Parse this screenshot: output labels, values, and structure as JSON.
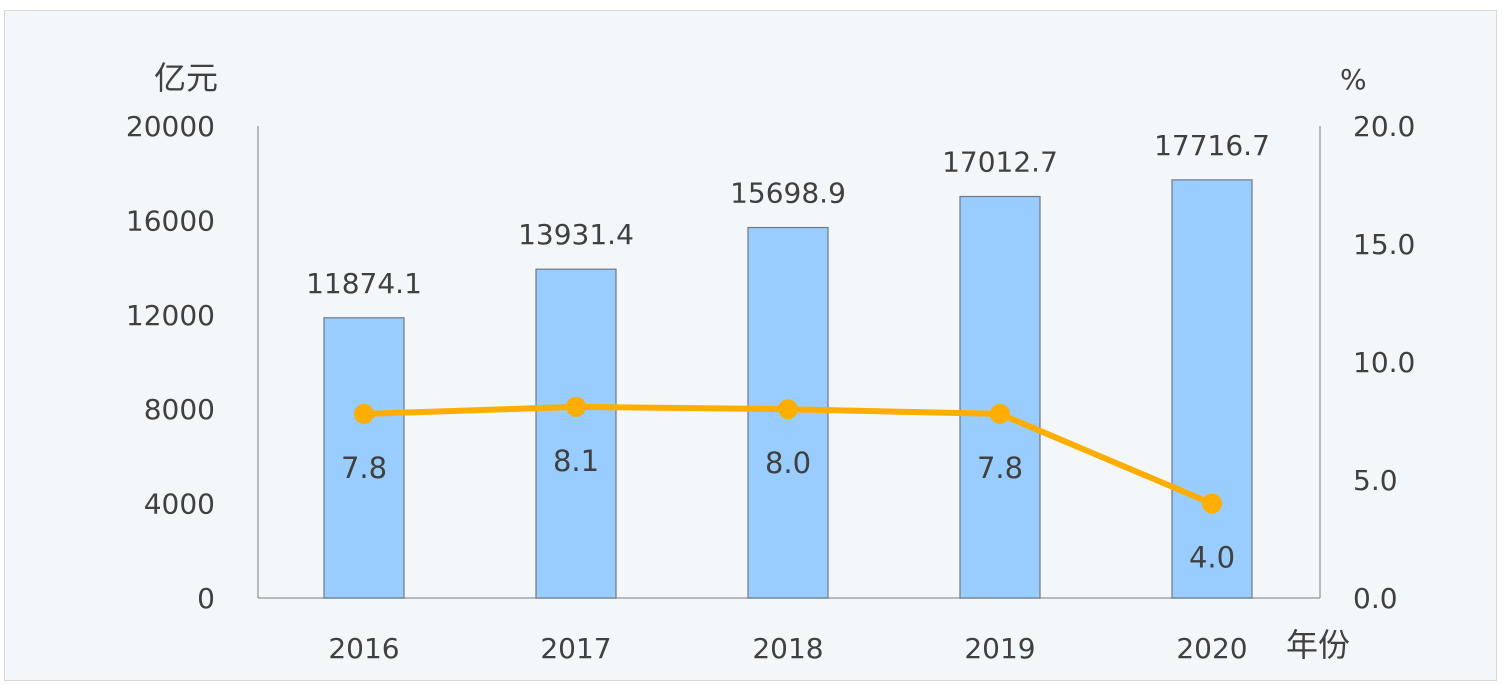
{
  "chart_data": {
    "type": "bar+line",
    "y_left_unit": "亿元",
    "y_right_unit": "%",
    "x_unit": "年份",
    "categories": [
      "2016",
      "2017",
      "2018",
      "2019",
      "2020"
    ],
    "bar_series": {
      "values": [
        11874.1,
        13931.4,
        15698.9,
        17012.7,
        17716.7
      ],
      "labels": [
        "11874.1",
        "13931.4",
        "15698.9",
        "17012.7",
        "17716.7"
      ],
      "color": "#99ccff",
      "edge_color": "#6f7a84"
    },
    "line_series": {
      "values": [
        7.8,
        8.1,
        8.0,
        7.8,
        4.0
      ],
      "labels": [
        "7.8",
        "8.1",
        "8.0",
        "7.8",
        "4.0"
      ],
      "color": "#ffae00"
    },
    "y_left": {
      "min": 0,
      "max": 20000,
      "ticks": [
        "0",
        "4000",
        "8000",
        "12000",
        "16000",
        "20000"
      ]
    },
    "y_right": {
      "min": 0,
      "max": 20,
      "ticks": [
        "0.0",
        "5.0",
        "10.0",
        "15.0",
        "20.0"
      ]
    },
    "grid": false,
    "legend": "none"
  }
}
